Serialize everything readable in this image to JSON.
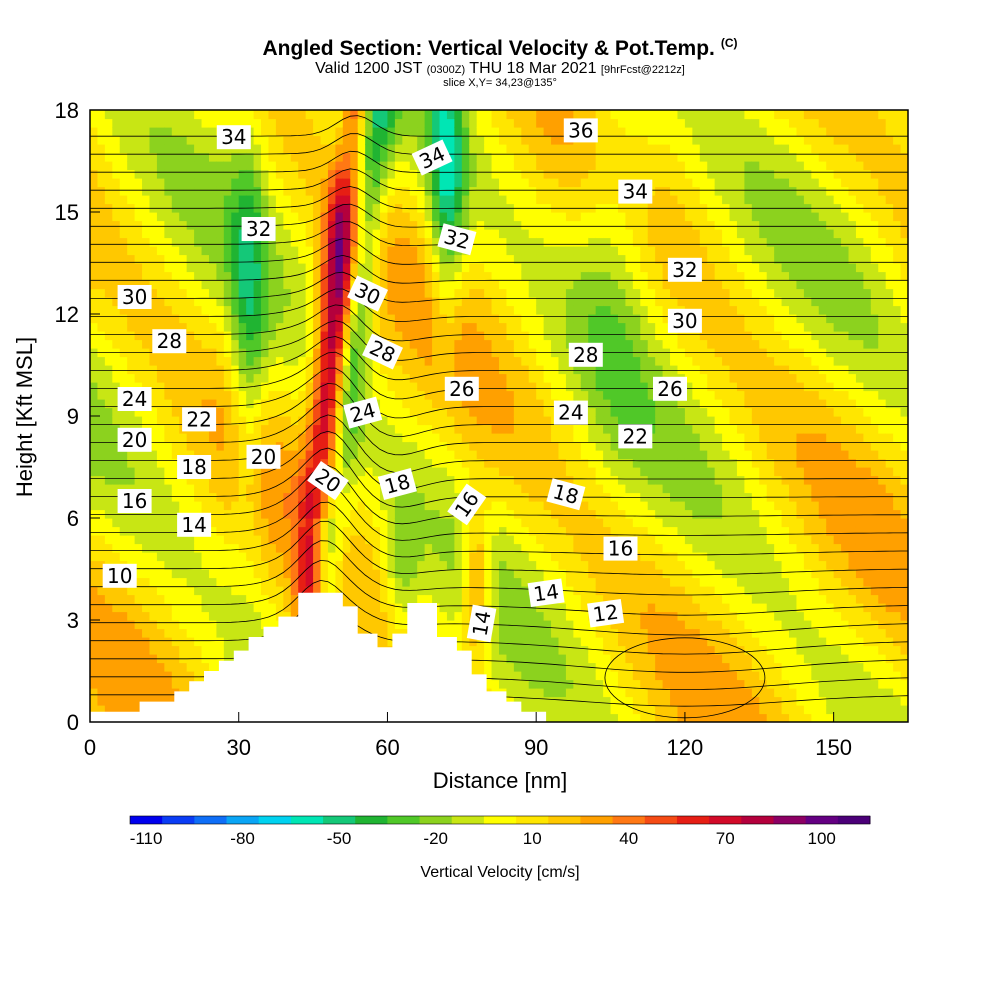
{
  "title": "Angled Section: Vertical Velocity & Pot.Temp.",
  "title_unit": "(C)",
  "subtitle_valid": "Valid 1200 JST",
  "subtitle_z": "(0300Z)",
  "subtitle_date": "THU 18 Mar 2021",
  "subtitle_fcst": "[9hrFcst@2212z]",
  "slice_label": "slice X,Y= 34,23@135°",
  "colorbar_label": "Vertical Velocity [cm/s]",
  "chart_data": {
    "type": "heatmap",
    "xlabel": "Distance [nm]",
    "ylabel": "Height [Kft MSL]",
    "xlim": [
      0,
      165
    ],
    "ylim": [
      0,
      18
    ],
    "x_ticks": [
      0,
      30,
      60,
      90,
      120,
      150
    ],
    "y_ticks": [
      0,
      3,
      6,
      9,
      12,
      15,
      18
    ],
    "colorbar": {
      "ticks": [
        -110,
        -80,
        -50,
        -20,
        10,
        40,
        70,
        100
      ],
      "min": -115,
      "max": 115,
      "step": 10,
      "colors": [
        "#0000ee",
        "#0a3cf5",
        "#0f6ef7",
        "#0aa5f5",
        "#00d2f0",
        "#00e6b4",
        "#14c878",
        "#20b432",
        "#50c828",
        "#8cd21e",
        "#c8e614",
        "#ffff00",
        "#ffe600",
        "#ffc800",
        "#ffa000",
        "#ff7814",
        "#f54b14",
        "#e61e14",
        "#d20a28",
        "#b4003c",
        "#8c0064",
        "#640082",
        "#4b0078"
      ]
    },
    "contour_field": "potential temperature (C)",
    "contour_labels": [
      {
        "text": "34",
        "x": 29,
        "y": 17.2,
        "angle": 0
      },
      {
        "text": "36",
        "x": 99,
        "y": 17.4,
        "angle": 0
      },
      {
        "text": "34",
        "x": 69,
        "y": 16.6,
        "angle": -25
      },
      {
        "text": "34",
        "x": 110,
        "y": 15.6,
        "angle": 0
      },
      {
        "text": "32",
        "x": 34,
        "y": 14.5,
        "angle": 0
      },
      {
        "text": "32",
        "x": 74,
        "y": 14.2,
        "angle": 15
      },
      {
        "text": "32",
        "x": 120,
        "y": 13.3,
        "angle": 0
      },
      {
        "text": "30",
        "x": 9,
        "y": 12.5,
        "angle": 0
      },
      {
        "text": "30",
        "x": 56,
        "y": 12.6,
        "angle": 25
      },
      {
        "text": "30",
        "x": 120,
        "y": 11.8,
        "angle": 0
      },
      {
        "text": "28",
        "x": 16,
        "y": 11.2,
        "angle": 0
      },
      {
        "text": "28",
        "x": 59,
        "y": 10.9,
        "angle": 25
      },
      {
        "text": "28",
        "x": 100,
        "y": 10.8,
        "angle": 0
      },
      {
        "text": "26",
        "x": 75,
        "y": 9.8,
        "angle": 0
      },
      {
        "text": "26",
        "x": 117,
        "y": 9.8,
        "angle": 0
      },
      {
        "text": "24",
        "x": 9,
        "y": 9.5,
        "angle": 0
      },
      {
        "text": "24",
        "x": 55,
        "y": 9.1,
        "angle": -15
      },
      {
        "text": "24",
        "x": 97,
        "y": 9.1,
        "angle": 0
      },
      {
        "text": "22",
        "x": 22,
        "y": 8.9,
        "angle": 0
      },
      {
        "text": "22",
        "x": 110,
        "y": 8.4,
        "angle": 0
      },
      {
        "text": "20",
        "x": 9,
        "y": 8.3,
        "angle": 0
      },
      {
        "text": "20",
        "x": 35,
        "y": 7.8,
        "angle": 0
      },
      {
        "text": "20",
        "x": 48,
        "y": 7.1,
        "angle": 35
      },
      {
        "text": "18",
        "x": 21,
        "y": 7.5,
        "angle": 0
      },
      {
        "text": "18",
        "x": 62,
        "y": 7.0,
        "angle": -15
      },
      {
        "text": "18",
        "x": 96,
        "y": 6.7,
        "angle": 15
      },
      {
        "text": "16",
        "x": 9,
        "y": 6.5,
        "angle": 0
      },
      {
        "text": "16",
        "x": 76,
        "y": 6.4,
        "angle": -55
      },
      {
        "text": "16",
        "x": 107,
        "y": 5.1,
        "angle": 0
      },
      {
        "text": "14",
        "x": 21,
        "y": 5.8,
        "angle": 0
      },
      {
        "text": "14",
        "x": 92,
        "y": 3.8,
        "angle": -8
      },
      {
        "text": "14",
        "x": 79,
        "y": 2.9,
        "angle": -80
      },
      {
        "text": "12",
        "x": 104,
        "y": 3.2,
        "angle": -8
      },
      {
        "text": "10",
        "x": 6,
        "y": 4.3,
        "angle": 0
      }
    ]
  }
}
